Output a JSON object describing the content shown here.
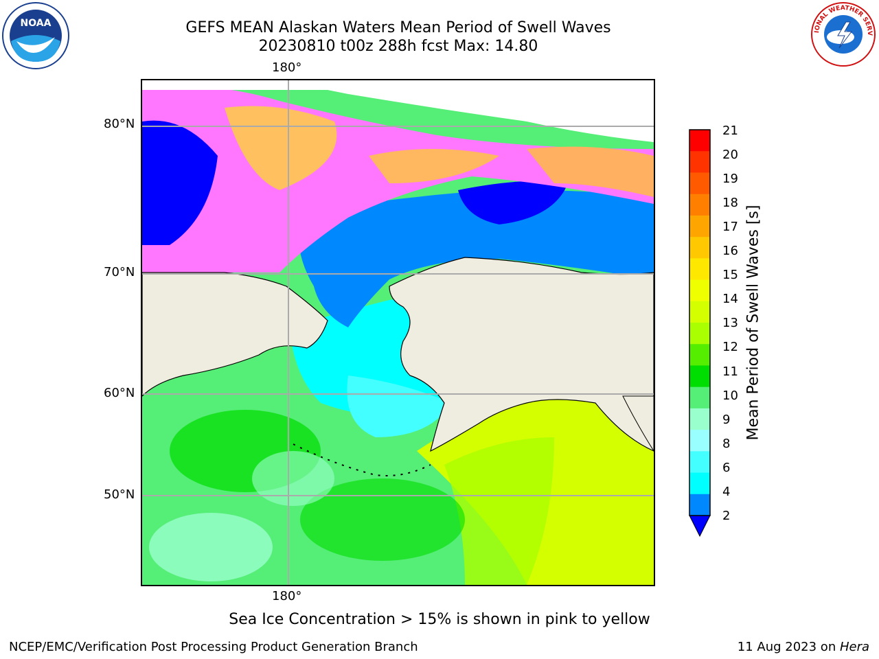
{
  "header": {
    "title_line1": "GEFS MEAN Alaskan Waters Mean Period of Swell Waves",
    "title_line2": "20230810 t00z 288h fcst   Max: 14.80"
  },
  "logos": {
    "left": "NOAA",
    "right": "NATIONAL WEATHER SERVICE"
  },
  "map": {
    "lon_label_top": "180°",
    "lon_label_bottom": "180°",
    "lat_labels": [
      "80°N",
      "70°N",
      "60°N",
      "50°N"
    ]
  },
  "colorbar": {
    "label": "Mean Period of Swell Waves [s]",
    "ticks": [
      "21",
      "20",
      "19",
      "18",
      "17",
      "16",
      "15",
      "14",
      "13",
      "12",
      "11",
      "10",
      "9",
      "8",
      "6",
      "4",
      "2"
    ],
    "colors": [
      "#ff0000",
      "#ff3300",
      "#ff5a00",
      "#ff7f00",
      "#ffa500",
      "#ffc800",
      "#ffe800",
      "#f0ff00",
      "#d4ff00",
      "#aaff00",
      "#55ee00",
      "#00dd00",
      "#55ee77",
      "#99ffcc",
      "#99ffff",
      "#44ffff",
      "#00ffff",
      "#0088ff"
    ],
    "extend_color": "#0000ff"
  },
  "caption": "Sea Ice Concentration > 15% is shown in pink to yellow",
  "footer": {
    "left": "NCEP/EMC/Verification Post Processing Product Generation Branch",
    "right_prefix": "11 Aug 2023 on ",
    "right_host": "Hera"
  }
}
